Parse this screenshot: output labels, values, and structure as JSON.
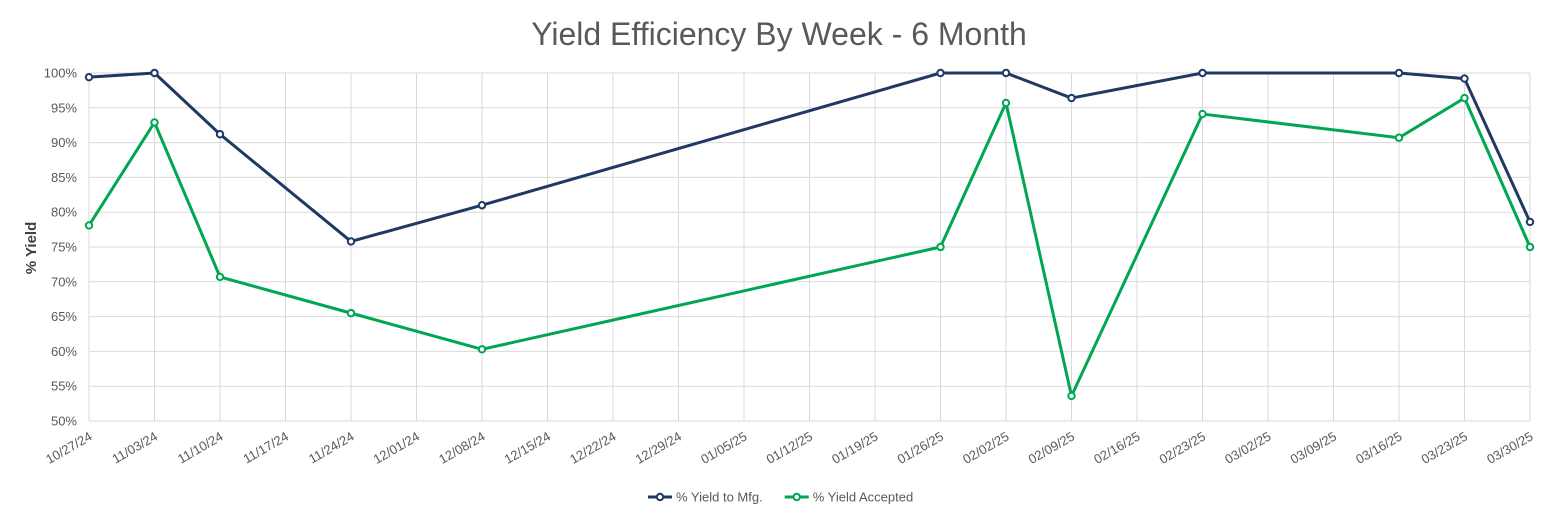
{
  "chart_data": {
    "type": "line",
    "title": "Yield Efficiency By Week - 6 Month",
    "xlabel": "",
    "ylabel": "% Yield",
    "ylim": [
      50,
      100
    ],
    "ytick_labels": [
      "50%",
      "55%",
      "60%",
      "65%",
      "70%",
      "75%",
      "80%",
      "85%",
      "90%",
      "95%",
      "100%"
    ],
    "categories": [
      "10/27/24",
      "11/03/24",
      "11/10/24",
      "11/17/24",
      "11/24/24",
      "12/01/24",
      "12/08/24",
      "12/15/24",
      "12/22/24",
      "12/29/24",
      "01/05/25",
      "01/12/25",
      "01/19/25",
      "01/26/25",
      "02/02/25",
      "02/09/25",
      "02/16/25",
      "02/23/25",
      "03/02/25",
      "03/09/25",
      "03/16/25",
      "03/23/25",
      "03/30/25"
    ],
    "grid": true,
    "legend_position": "bottom",
    "series": [
      {
        "name": "% Yield to Mfg.",
        "color": "#1f3864",
        "points": [
          {
            "x": "10/27/24",
            "y": 99.4
          },
          {
            "x": "11/03/24",
            "y": 100
          },
          {
            "x": "11/10/24",
            "y": 91.2
          },
          {
            "x": "11/24/24",
            "y": 75.8
          },
          {
            "x": "12/08/24",
            "y": 81
          },
          {
            "x": "01/26/25",
            "y": 100
          },
          {
            "x": "02/02/25",
            "y": 100
          },
          {
            "x": "02/09/25",
            "y": 96.4
          },
          {
            "x": "02/23/25",
            "y": 100
          },
          {
            "x": "03/16/25",
            "y": 100
          },
          {
            "x": "03/23/25",
            "y": 99.2
          },
          {
            "x": "03/30/25",
            "y": 78.6
          }
        ]
      },
      {
        "name": "% Yield Accepted",
        "color": "#00a651",
        "points": [
          {
            "x": "10/27/24",
            "y": 78.1
          },
          {
            "x": "11/03/24",
            "y": 92.9
          },
          {
            "x": "11/10/24",
            "y": 70.7
          },
          {
            "x": "11/24/24",
            "y": 65.5
          },
          {
            "x": "12/08/24",
            "y": 60.3
          },
          {
            "x": "01/26/25",
            "y": 75
          },
          {
            "x": "02/02/25",
            "y": 95.7
          },
          {
            "x": "02/09/25",
            "y": 53.6
          },
          {
            "x": "02/23/25",
            "y": 94.1
          },
          {
            "x": "03/16/25",
            "y": 90.7
          },
          {
            "x": "03/23/25",
            "y": 96.4
          },
          {
            "x": "03/30/25",
            "y": 75
          }
        ]
      }
    ]
  }
}
